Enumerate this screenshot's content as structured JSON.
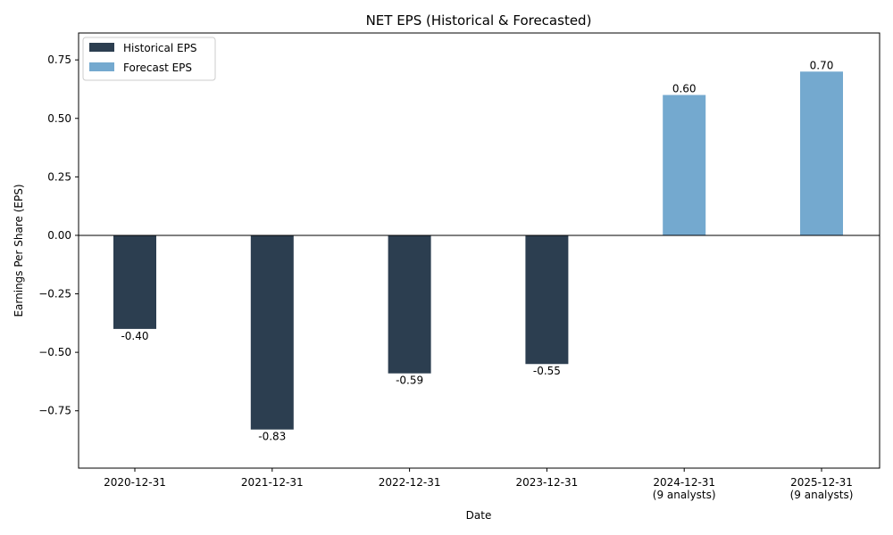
{
  "chart_data": {
    "type": "bar",
    "title": "NET EPS (Historical & Forecasted)",
    "xlabel": "Date",
    "ylabel": "Earnings Per Share (EPS)",
    "ylim": [
      -0.995,
      0.865
    ],
    "yticks": [
      -0.75,
      -0.5,
      -0.25,
      0.0,
      0.25,
      0.5,
      0.75
    ],
    "ytick_labels": [
      "−0.75",
      "−0.50",
      "−0.25",
      "0.00",
      "0.25",
      "0.50",
      "0.75"
    ],
    "grid": false,
    "legend_position": "top-left",
    "categories": [
      "2020-12-31",
      "2021-12-31",
      "2022-12-31",
      "2023-12-31",
      "2024-12-31\n(9 analysts)",
      "2025-12-31\n(9 analysts)"
    ],
    "series": [
      {
        "name": "Historical EPS",
        "color": "#2c3e50",
        "values": [
          -0.4,
          -0.83,
          -0.59,
          -0.55,
          null,
          null
        ],
        "labels": [
          "-0.40",
          "-0.83",
          "-0.59",
          "-0.55",
          null,
          null
        ]
      },
      {
        "name": "Forecast EPS",
        "color": "#74a9cf",
        "values": [
          null,
          null,
          null,
          null,
          0.6,
          0.7
        ],
        "labels": [
          null,
          null,
          null,
          null,
          "0.60",
          "0.70"
        ]
      }
    ]
  }
}
